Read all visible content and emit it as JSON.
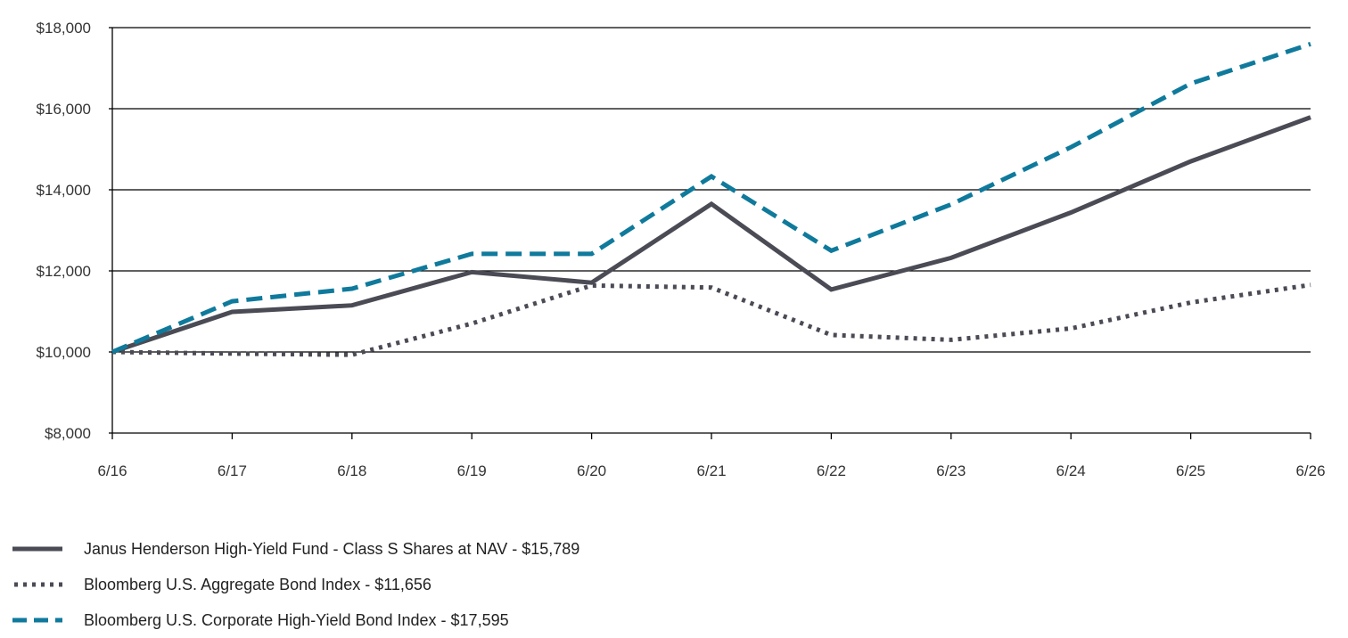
{
  "chart_data": {
    "type": "line",
    "categories": [
      "6/16",
      "6/17",
      "6/18",
      "6/19",
      "6/20",
      "6/21",
      "6/22",
      "6/23",
      "6/24",
      "6/25",
      "6/26"
    ],
    "y_tick_labels": [
      "$8,000",
      "$10,000",
      "$12,000",
      "$14,000",
      "$16,000",
      "$18,000"
    ],
    "y_ticks": [
      8000,
      10000,
      12000,
      14000,
      16000,
      18000
    ],
    "ylim": [
      8000,
      18000
    ],
    "grid": "horizontal",
    "legend_position": "bottom-left",
    "series": [
      {
        "name": "Janus Henderson High-Yield Fund - Class S Shares at NAV - $15,789",
        "color": "#4a4b54",
        "style": "solid",
        "values": [
          10000,
          10990,
          11150,
          11970,
          11710,
          13650,
          11540,
          12320,
          13440,
          14700,
          15789
        ]
      },
      {
        "name": "Bloomberg U.S. Aggregate Bond Index - $11,656",
        "color": "#4a4b54",
        "style": "dotted",
        "values": [
          10000,
          9960,
          9930,
          10700,
          11640,
          11590,
          10420,
          10300,
          10580,
          11220,
          11656
        ]
      },
      {
        "name": "Bloomberg U.S. Corporate High-Yield Bond Index - $17,595",
        "color": "#0f7a9c",
        "style": "dashed",
        "values": [
          10000,
          11250,
          11560,
          12420,
          12420,
          14330,
          12500,
          13640,
          15050,
          16620,
          17595
        ]
      }
    ]
  }
}
